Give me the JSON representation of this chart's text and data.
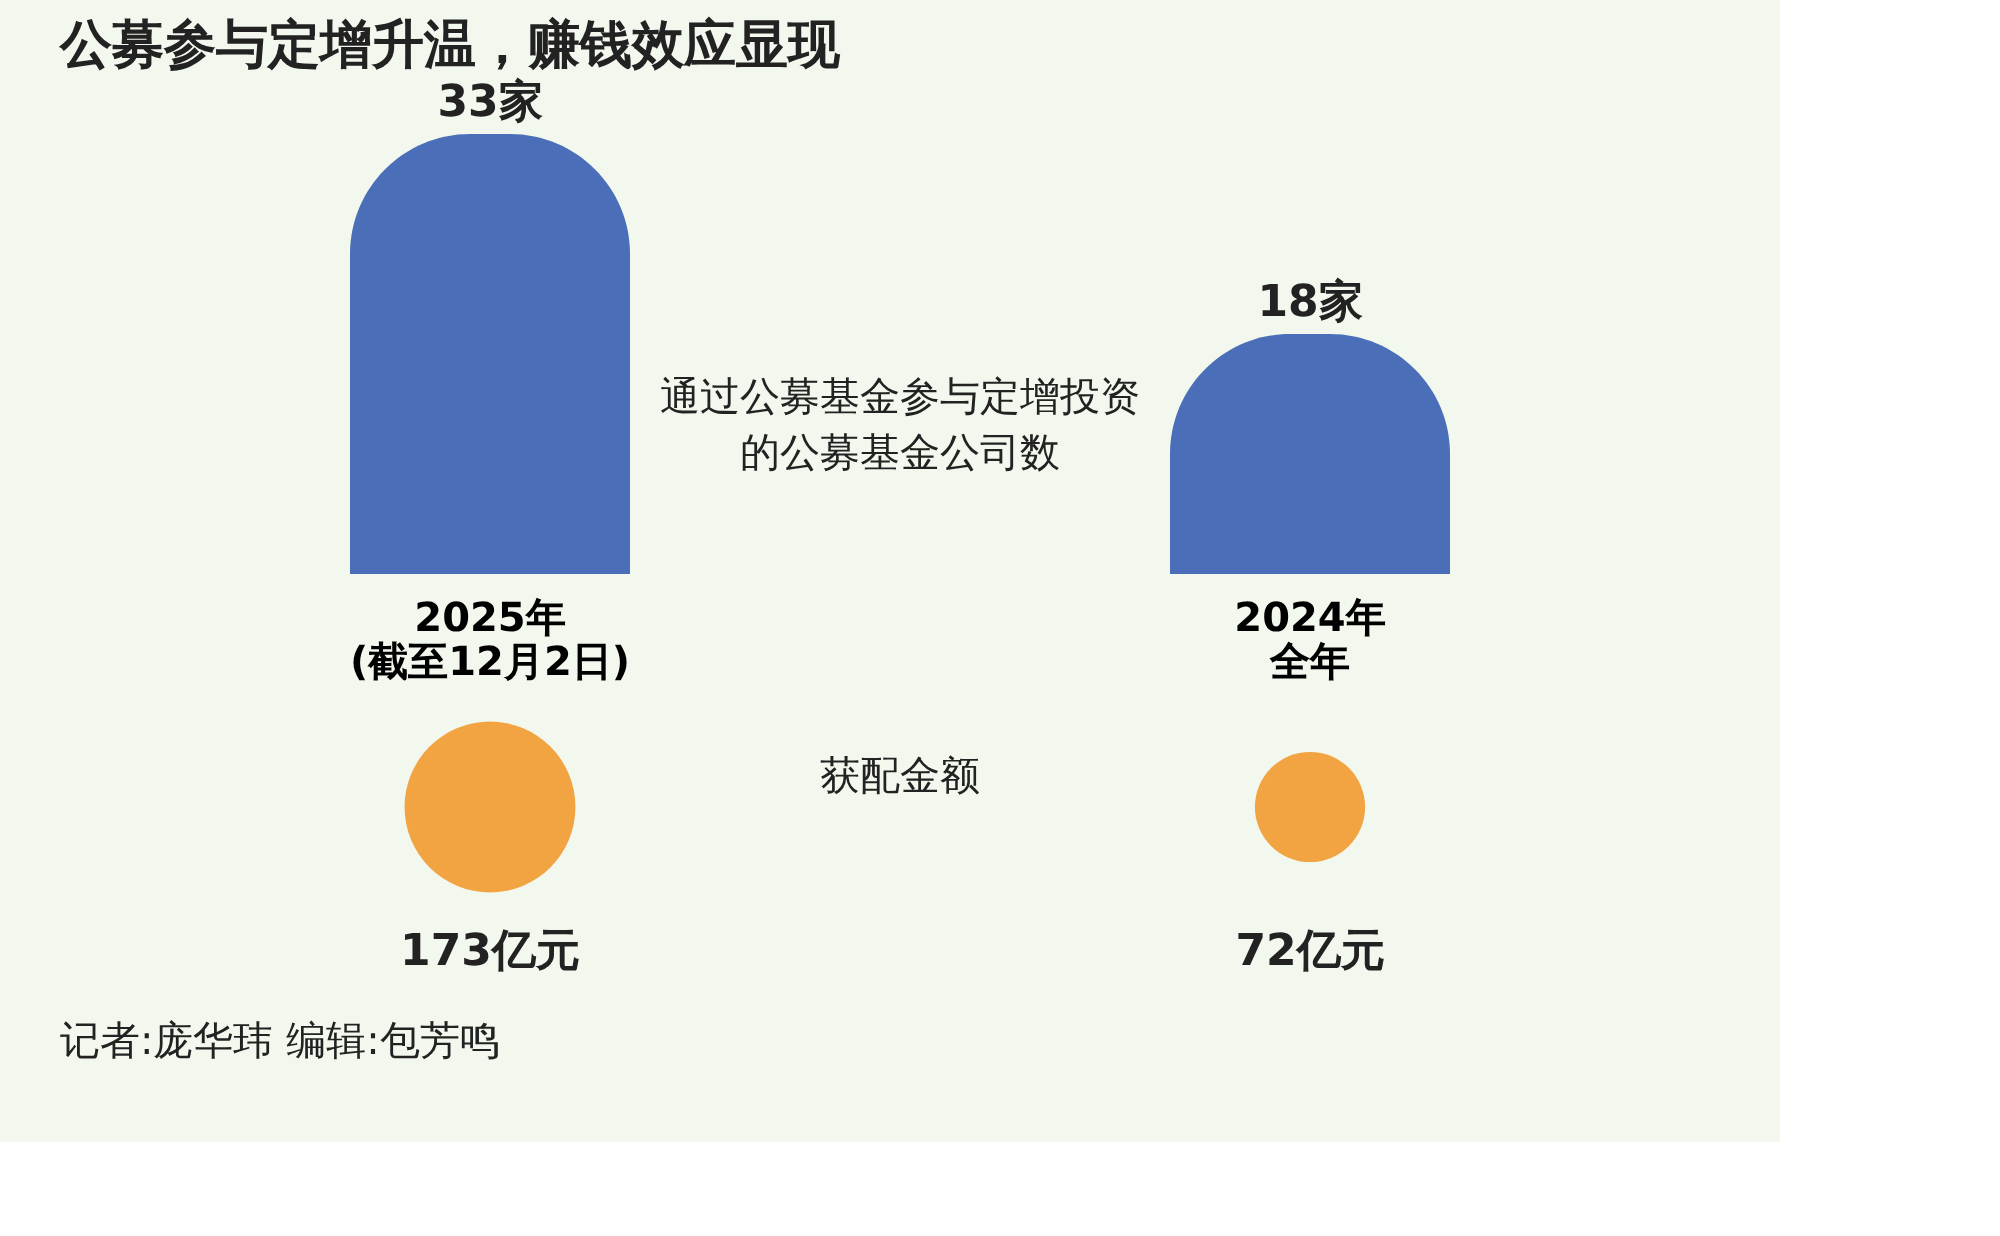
{
  "chart_data": [
    {
      "type": "bar",
      "title": "公募参与定增升温，赚钱效应显现",
      "categories": [
        "2025年(截至12月2日)",
        "2024年全年"
      ],
      "series": [
        {
          "name": "通过公募基金参与定增投资的公募基金公司数",
          "color": "#4a6fb8",
          "values": [
            33,
            18
          ],
          "value_labels": [
            "33家",
            "18家"
          ]
        }
      ],
      "tick_labels": "x"
    },
    {
      "type": "other",
      "title": "获配金额",
      "categories": [
        null,
        null
      ],
      "series": [
        {
          "color": "#f2a443",
          "values": [
            173,
            72
          ],
          "value_labels": [
            "173亿元",
            "72亿元"
          ]
        }
      ],
      "annotations": [
        "记者:庞华玮  编辑:包芳鸣"
      ]
    }
  ]
}
